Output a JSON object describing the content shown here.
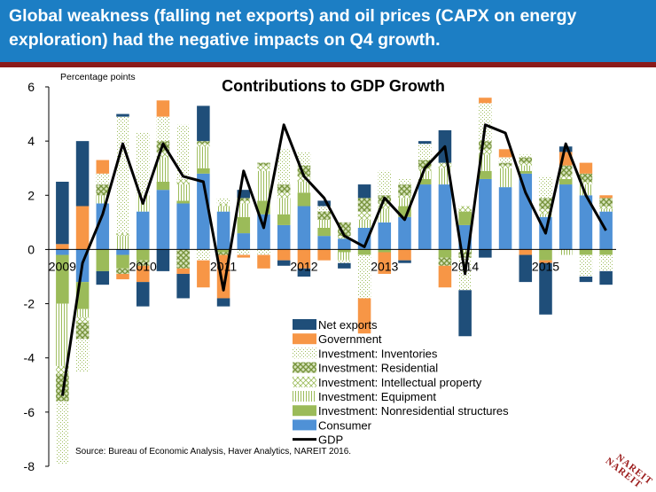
{
  "header": {
    "title": "Global weakness (falling net exports) and oil prices (CAPX on energy exploration) had the negative impacts on Q4 growth."
  },
  "colors": {
    "banner": "#1c7ec4",
    "rule": "#8b1a1a",
    "net_exports": "#1f4e79",
    "government": "#f79646",
    "inventories": "#c4d79b",
    "residential": "#9bbb59",
    "intellectual_property": "#c4d79b",
    "equipment": "#c4d79b",
    "nonres_structures": "#9bbb59",
    "consumer": "#4f91d6",
    "gdp": "#000000"
  },
  "chart_data": {
    "type": "bar",
    "stacked": true,
    "title": "Contributions to GDP Growth",
    "ylabel": "Percentage points",
    "ylim": [
      -8,
      6
    ],
    "yticks": [
      "6",
      "4",
      "2",
      "0",
      "-2",
      "-4",
      "-6",
      "-8"
    ],
    "year_labels": [
      "2009",
      "2010",
      "2011",
      "2012",
      "2013",
      "2014",
      "2015"
    ],
    "categories": [
      "2009Q1",
      "2009Q2",
      "2009Q3",
      "2009Q4",
      "2010Q1",
      "2010Q2",
      "2010Q3",
      "2010Q4",
      "2011Q1",
      "2011Q2",
      "2011Q3",
      "2011Q4",
      "2012Q1",
      "2012Q2",
      "2012Q3",
      "2012Q4",
      "2013Q1",
      "2013Q2",
      "2013Q3",
      "2013Q4",
      "2014Q1",
      "2014Q2",
      "2014Q3",
      "2014Q4",
      "2015Q1",
      "2015Q2",
      "2015Q3",
      "2015Q4"
    ],
    "series": [
      {
        "name": "Consumer",
        "key": "consumer",
        "values": [
          -0.2,
          -1.2,
          1.7,
          -0.2,
          1.4,
          2.2,
          1.7,
          2.8,
          1.4,
          0.6,
          1.3,
          0.9,
          1.6,
          0.5,
          0.4,
          0.8,
          1.0,
          1.2,
          2.4,
          2.4,
          0.9,
          2.6,
          2.3,
          2.8,
          1.2,
          2.4,
          2.0,
          1.4
        ]
      },
      {
        "name": "Investment: Nonresidential structures",
        "key": "nonres_structures",
        "values": [
          -1.8,
          -1.0,
          -0.8,
          -0.5,
          -0.4,
          0.3,
          0.1,
          0.2,
          -0.1,
          0.6,
          0.5,
          0.4,
          0.5,
          0.3,
          -0.1,
          -0.2,
          -0.1,
          0.4,
          0.2,
          -0.3,
          0.5,
          0.3,
          0.0,
          0.1,
          -0.4,
          0.2,
          -0.2,
          -0.2
        ]
      },
      {
        "name": "Investment: Equipment",
        "key": "equipment",
        "values": [
          -2.3,
          -0.3,
          0.3,
          0.5,
          0.6,
          0.9,
          0.6,
          0.8,
          0.2,
          0.5,
          1.1,
          0.6,
          0.4,
          0.3,
          -0.3,
          0.3,
          0.5,
          0.3,
          0.3,
          0.6,
          -0.1,
          0.6,
          0.7,
          0.2,
          0.1,
          -0.2,
          0.4,
          0.1
        ]
      },
      {
        "name": "Investment: Intellectual property",
        "key": "intellectual_property",
        "values": [
          -0.3,
          -0.2,
          0.0,
          0.1,
          0.1,
          0.2,
          0.2,
          0.1,
          0.1,
          0.1,
          0.2,
          0.2,
          0.2,
          0.0,
          0.1,
          0.3,
          0.2,
          0.1,
          0.1,
          0.2,
          0.2,
          0.2,
          0.1,
          0.1,
          0.2,
          0.1,
          0.1,
          0.1
        ]
      },
      {
        "name": "Investment: Residential",
        "key": "residential",
        "values": [
          -1.0,
          -0.6,
          0.4,
          -0.2,
          -0.2,
          0.4,
          -0.7,
          0.1,
          -0.1,
          0.1,
          0.1,
          0.3,
          0.4,
          0.3,
          0.5,
          0.5,
          0.3,
          0.4,
          0.3,
          -0.3,
          -0.2,
          0.3,
          0.1,
          0.2,
          0.4,
          0.4,
          0.3,
          0.3
        ]
      },
      {
        "name": "Investment: Inventories",
        "key": "inventories",
        "values": [
          -2.3,
          -1.2,
          0.4,
          4.3,
          2.2,
          0.9,
          2.0,
          -0.4,
          0.2,
          -0.2,
          -0.2,
          1.3,
          0.5,
          0.2,
          -0.1,
          -1.6,
          0.9,
          0.2,
          0.6,
          0.0,
          -1.2,
          1.4,
          0.2,
          0.1,
          0.8,
          0.0,
          -0.8,
          -0.6
        ]
      },
      {
        "name": "Government",
        "key": "government",
        "values": [
          0.2,
          1.6,
          0.5,
          -0.2,
          -0.6,
          0.6,
          -0.2,
          -1.0,
          -1.6,
          -0.1,
          -0.5,
          -0.4,
          -0.7,
          -0.4,
          0.0,
          -1.3,
          -0.8,
          -0.4,
          0.0,
          -0.8,
          0.0,
          0.2,
          0.3,
          -0.2,
          -0.1,
          0.5,
          0.4,
          0.1
        ]
      },
      {
        "name": "Net exports",
        "key": "net_exports",
        "values": [
          2.3,
          2.4,
          -0.5,
          0.1,
          -0.9,
          -0.8,
          -0.9,
          1.3,
          -0.3,
          0.3,
          0.0,
          -0.2,
          -0.3,
          0.2,
          -0.2,
          0.5,
          0.0,
          -0.1,
          0.1,
          1.2,
          -1.7,
          -0.3,
          0.0,
          -1.0,
          -1.9,
          0.2,
          -0.2,
          -0.5
        ]
      }
    ],
    "gdp": {
      "name": "GDP",
      "values": [
        -5.4,
        -0.5,
        1.3,
        3.9,
        1.7,
        3.9,
        2.7,
        2.5,
        -1.5,
        2.9,
        0.8,
        4.6,
        2.7,
        1.9,
        0.5,
        0.1,
        1.9,
        1.1,
        3.0,
        3.8,
        -0.9,
        4.6,
        4.3,
        2.1,
        0.6,
        3.9,
        2.0,
        0.7
      ]
    },
    "legend": [
      "Net exports",
      "Government",
      "Investment: Inventories",
      "Investment: Residential",
      "Investment: Intellectual property",
      "Investment: Equipment",
      "Investment: Nonresidential structures",
      "Consumer",
      "GDP"
    ],
    "legend_placement": "bottom-center",
    "grid": false
  },
  "source": "Source: Bureau of Economic Analysis, Haver Analytics, NAREIT 2016.",
  "logo": {
    "line1": "NAREIT",
    "line2": "NAREIT"
  }
}
